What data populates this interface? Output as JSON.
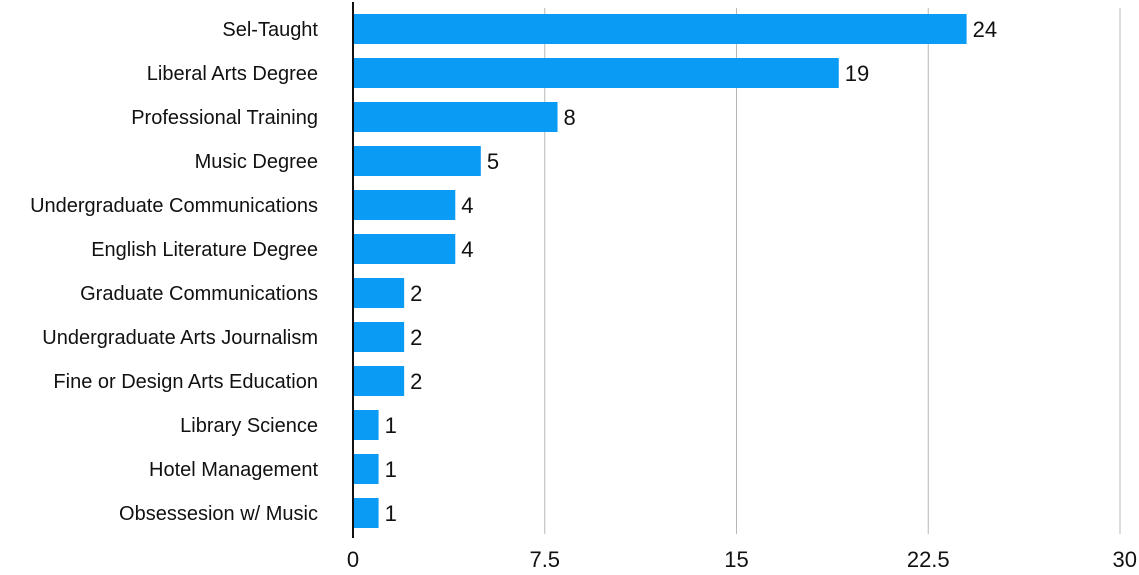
{
  "chart_data": {
    "type": "bar",
    "orientation": "horizontal",
    "categories": [
      "Sel-Taught",
      "Liberal Arts Degree",
      "Professional Training",
      "Music Degree",
      "Undergraduate Communications",
      "English Literature Degree",
      "Graduate Communications",
      "Undergraduate Arts Journalism",
      "Fine or Design Arts Education",
      "Library Science",
      "Hotel Management",
      "Obsessesion w/ Music"
    ],
    "values": [
      24,
      19,
      8,
      5,
      4,
      4,
      2,
      2,
      2,
      1,
      1,
      1
    ],
    "xlim": [
      0,
      30
    ],
    "xticks": [
      "0",
      "7.5",
      "15",
      "22.5",
      "30"
    ],
    "grid": "vertical",
    "data_labels": true,
    "colors": {
      "bar": "#0a9bf5",
      "grid": "#b7b7b7",
      "axis": "#111111",
      "text": "#111111"
    }
  }
}
